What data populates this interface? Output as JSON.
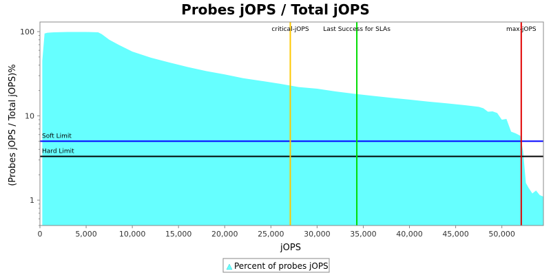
{
  "chart_data": {
    "type": "area",
    "title": "Probes jOPS / Total jOPS",
    "xlabel": "jOPS",
    "ylabel": "(Probes jOPS / Total jOPS)%",
    "xlim": [
      0,
      54500
    ],
    "ylim": [
      0.5,
      130
    ],
    "y_scale": "log",
    "grid": false,
    "legend_position": "bottom",
    "x_ticks": [
      0,
      5000,
      10000,
      15000,
      20000,
      25000,
      30000,
      35000,
      40000,
      45000,
      50000
    ],
    "x_tick_labels": [
      "0",
      "5,000",
      "10,000",
      "15,000",
      "20,000",
      "25,000",
      "30,000",
      "35,000",
      "40,000",
      "45,000",
      "50,000"
    ],
    "y_ticks": [
      1,
      10,
      100
    ],
    "y_tick_labels": [
      "1",
      "10",
      "100"
    ],
    "series": [
      {
        "name": "Percent of probes jOPS",
        "color": "#66ffff",
        "x": [
          250,
          500,
          800,
          1500,
          3000,
          5000,
          6300,
          6700,
          7500,
          8500,
          10000,
          12000,
          14000,
          16000,
          18000,
          20000,
          22000,
          24000,
          26000,
          28000,
          30000,
          32000,
          34000,
          36000,
          38000,
          40000,
          42000,
          44000,
          46000,
          47500,
          48000,
          48500,
          49000,
          49500,
          50000,
          50500,
          51000,
          51500,
          52000,
          52300,
          52600,
          52900,
          53300,
          53700,
          54100,
          54500
        ],
        "y": [
          45,
          95,
          97,
          98,
          99,
          99,
          98,
          93,
          80,
          70,
          58,
          49,
          43,
          38,
          34,
          31,
          28,
          26,
          24,
          22,
          21,
          19.5,
          18.3,
          17.3,
          16.4,
          15.6,
          14.8,
          14.1,
          13.4,
          12.8,
          12.3,
          11.2,
          11.3,
          10.8,
          9.0,
          9.2,
          6.5,
          6.2,
          5.8,
          3.8,
          1.6,
          1.4,
          1.2,
          1.3,
          1.15,
          1.1
        ]
      }
    ],
    "annotations": {
      "vertical_lines": [
        {
          "label": "critical-jOPS",
          "x": 27100,
          "color": "#ffc800"
        },
        {
          "label": "Last Success for SLAs",
          "x": 34300,
          "color": "#00dd00"
        },
        {
          "label": "max-jOPS",
          "x": 52100,
          "color": "#e00000"
        }
      ],
      "horizontal_lines": [
        {
          "label": "Soft Limit",
          "y": 5,
          "color": "#0000ff"
        },
        {
          "label": "Hard Limit",
          "y": 3.3,
          "color": "#000000"
        }
      ]
    }
  }
}
